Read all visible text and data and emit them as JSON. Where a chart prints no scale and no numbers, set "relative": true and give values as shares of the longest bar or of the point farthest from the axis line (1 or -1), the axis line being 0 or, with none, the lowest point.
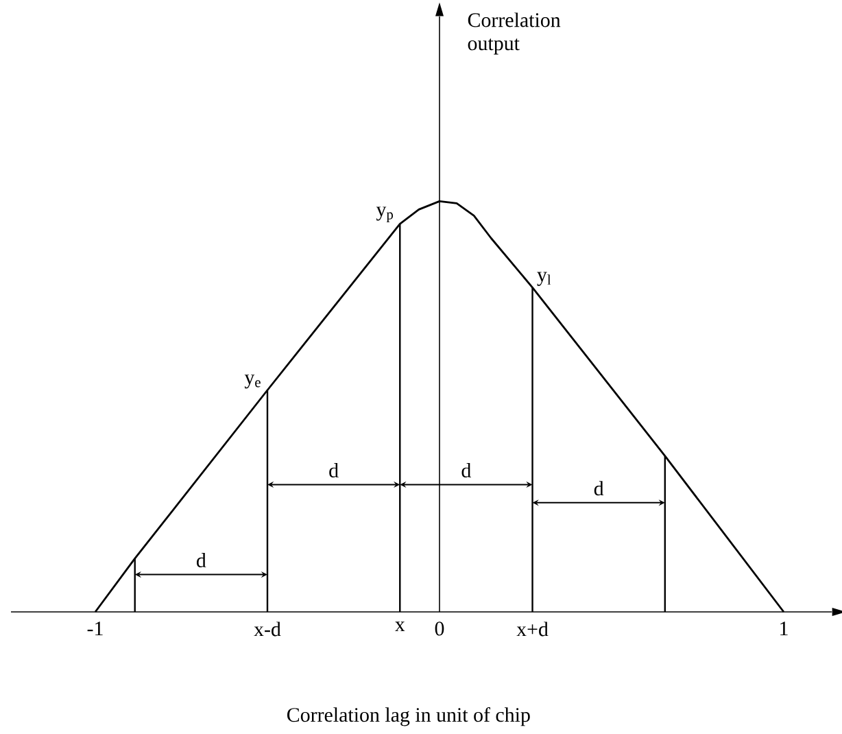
{
  "chart_data": {
    "type": "line",
    "relative": true,
    "xlabel": "Correlation lag in unit of chip",
    "xlim": [
      -1.245,
      1.14
    ],
    "xticks": [
      -1,
      {
        "value": -0.5,
        "label": "x-d"
      },
      {
        "value": -0.115,
        "label": "x"
      },
      0,
      {
        "value": 0.27,
        "label": "x+d"
      },
      1
    ],
    "marker": "none",
    "line_style": "solid",
    "series": [
      {
        "color": "#000000",
        "x": [
          -1,
          -0.885,
          -0.5,
          -0.115,
          -0.06,
          0,
          0.05,
          0.1,
          0.15,
          0.27,
          0.655,
          1
        ],
        "values": [
          0,
          0.13,
          0.54,
          0.945,
          0.98,
          1,
          0.995,
          0.965,
          0.91,
          0.79,
          0.38,
          0
        ]
      },
      {
        "type": "bar",
        "color": "#000000",
        "x": [
          -0.885,
          -0.5,
          -0.115,
          0.27,
          0.655
        ],
        "values": [
          0.13,
          0.54,
          0.945,
          0.79,
          0.38
        ]
      }
    ],
    "annotations": [
      "Correlation output",
      {
        "text": "y$_{e}$",
        "x": -0.5,
        "y": 0.54
      },
      {
        "text": "y$_{p}$",
        "x": -0.115,
        "y": 0.945
      },
      {
        "text": "y$_{l}$",
        "x": 0.27,
        "y": 0.79
      },
      "d",
      "d",
      "d",
      "d"
    ]
  }
}
